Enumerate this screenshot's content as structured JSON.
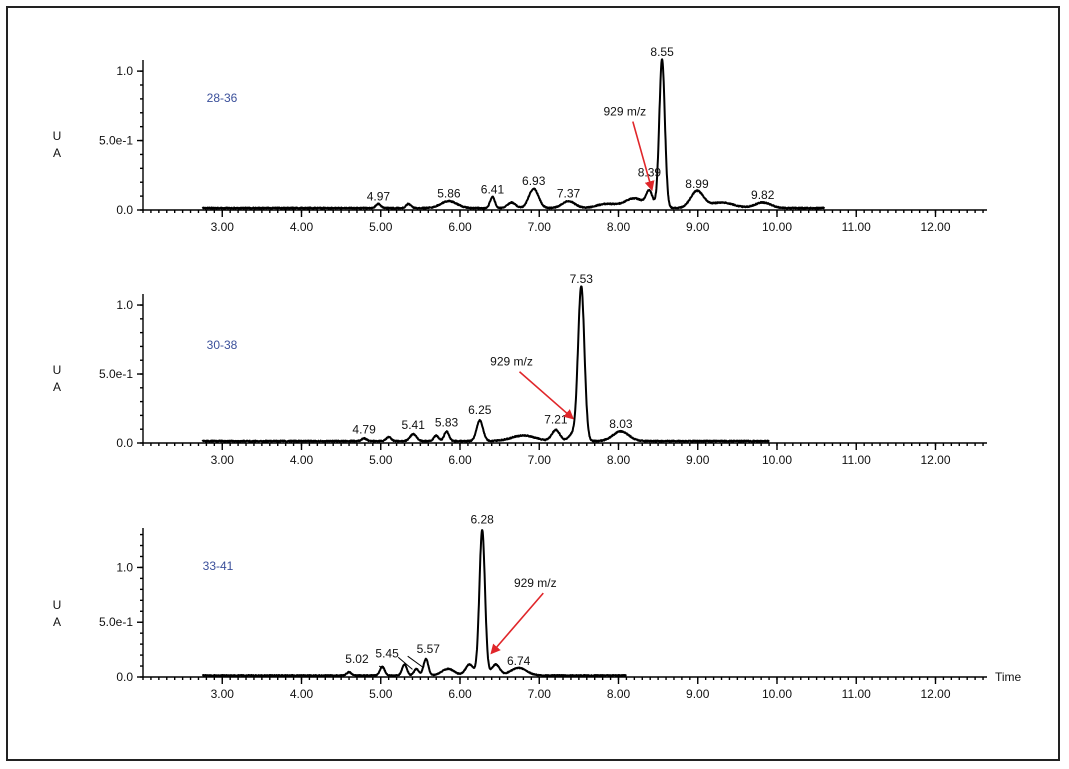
{
  "chart_data": [
    {
      "type": "line",
      "sample_label": "28-36",
      "ylabel": "U\nA",
      "y_ticks": [
        "0.0",
        "5.0e-1",
        "1.0"
      ],
      "x_ticks": [
        "3.00",
        "4.00",
        "5.00",
        "6.00",
        "7.00",
        "8.00",
        "9.00",
        "10.00",
        "11.00",
        "12.00"
      ],
      "xlim": [
        2.0,
        12.65
      ],
      "ylim": [
        0,
        1.08
      ],
      "trace_range": [
        2.75,
        10.6
      ],
      "peaks": [
        {
          "rt": 4.97,
          "h": 0.03,
          "w": 0.03
        },
        {
          "rt": 5.35,
          "h": 0.03,
          "w": 0.03
        },
        {
          "rt": 5.86,
          "h": 0.05,
          "w": 0.1
        },
        {
          "rt": 6.41,
          "h": 0.08,
          "w": 0.03
        },
        {
          "rt": 6.65,
          "h": 0.04,
          "w": 0.05
        },
        {
          "rt": 6.93,
          "h": 0.14,
          "w": 0.06
        },
        {
          "rt": 7.37,
          "h": 0.05,
          "w": 0.08
        },
        {
          "rt": 7.85,
          "h": 0.03,
          "w": 0.12
        },
        {
          "rt": 8.2,
          "h": 0.07,
          "w": 0.12
        },
        {
          "rt": 8.39,
          "h": 0.11,
          "w": 0.04
        },
        {
          "rt": 8.55,
          "h": 1.07,
          "w": 0.035
        },
        {
          "rt": 8.99,
          "h": 0.12,
          "w": 0.08
        },
        {
          "rt": 9.3,
          "h": 0.04,
          "w": 0.15
        },
        {
          "rt": 9.82,
          "h": 0.04,
          "w": 0.1
        }
      ],
      "peak_labels": [
        {
          "text": "4.97",
          "rt": 4.97,
          "y": 0.07
        },
        {
          "text": "5.86",
          "rt": 5.86,
          "y": 0.09
        },
        {
          "text": "6.41",
          "rt": 6.41,
          "y": 0.12
        },
        {
          "text": "6.93",
          "rt": 6.93,
          "y": 0.18
        },
        {
          "text": "7.37",
          "rt": 7.37,
          "y": 0.09
        },
        {
          "text": "8.39",
          "rt": 8.39,
          "y": 0.24
        },
        {
          "text": "8.55",
          "rt": 8.55,
          "y": 1.11
        },
        {
          "text": "8.99",
          "rt": 8.99,
          "y": 0.16
        },
        {
          "text": "9.82",
          "rt": 9.82,
          "y": 0.08
        }
      ],
      "annotation": {
        "text": "929 m/z",
        "text_rt": 8.08,
        "text_y": 0.68,
        "arrow_to_rt": 8.42,
        "arrow_to_y": 0.15
      }
    },
    {
      "type": "line",
      "sample_label": "30-38",
      "ylabel": "U\nA",
      "y_ticks": [
        "0.0",
        "5.0e-1",
        "1.0"
      ],
      "x_ticks": [
        "3.00",
        "4.00",
        "5.00",
        "6.00",
        "7.00",
        "8.00",
        "9.00",
        "10.00",
        "11.00",
        "12.00"
      ],
      "xlim": [
        2.0,
        12.65
      ],
      "ylim": [
        0,
        1.08
      ],
      "trace_range": [
        2.75,
        9.9
      ],
      "peaks": [
        {
          "rt": 4.79,
          "h": 0.02,
          "w": 0.03
        },
        {
          "rt": 5.1,
          "h": 0.03,
          "w": 0.03
        },
        {
          "rt": 5.41,
          "h": 0.05,
          "w": 0.04
        },
        {
          "rt": 5.7,
          "h": 0.04,
          "w": 0.03
        },
        {
          "rt": 5.83,
          "h": 0.07,
          "w": 0.03
        },
        {
          "rt": 6.25,
          "h": 0.15,
          "w": 0.04
        },
        {
          "rt": 6.8,
          "h": 0.04,
          "w": 0.15
        },
        {
          "rt": 7.21,
          "h": 0.08,
          "w": 0.05
        },
        {
          "rt": 7.42,
          "h": 0.05,
          "w": 0.05
        },
        {
          "rt": 7.53,
          "h": 1.12,
          "w": 0.04
        },
        {
          "rt": 8.03,
          "h": 0.07,
          "w": 0.1
        }
      ],
      "peak_labels": [
        {
          "text": "4.79",
          "rt": 4.79,
          "y": 0.07
        },
        {
          "text": "5.41",
          "rt": 5.41,
          "y": 0.1
        },
        {
          "text": "5.83",
          "rt": 5.83,
          "y": 0.12
        },
        {
          "text": "6.25",
          "rt": 6.25,
          "y": 0.21
        },
        {
          "text": "7.21",
          "rt": 7.21,
          "y": 0.14
        },
        {
          "text": "7.53",
          "rt": 7.53,
          "y": 1.16
        },
        {
          "text": "8.03",
          "rt": 8.03,
          "y": 0.11
        }
      ],
      "annotation": {
        "text": "929 m/z",
        "text_rt": 6.65,
        "text_y": 0.56,
        "arrow_to_rt": 7.42,
        "arrow_to_y": 0.18
      }
    },
    {
      "type": "line",
      "sample_label": "33-41",
      "ylabel": "U\nA",
      "y_ticks": [
        "0.0",
        "5.0e-1",
        "1.0"
      ],
      "x_ticks": [
        "3.00",
        "4.00",
        "5.00",
        "6.00",
        "7.00",
        "8.00",
        "9.00",
        "10.00",
        "11.00",
        "12.00"
      ],
      "xlabel": "Time",
      "xlim": [
        2.0,
        12.65
      ],
      "ylim": [
        0,
        1.36
      ],
      "trace_range": [
        2.75,
        8.1
      ],
      "peaks": [
        {
          "rt": 4.6,
          "h": 0.03,
          "w": 0.03
        },
        {
          "rt": 5.02,
          "h": 0.08,
          "w": 0.03
        },
        {
          "rt": 5.3,
          "h": 0.1,
          "w": 0.03
        },
        {
          "rt": 5.45,
          "h": 0.06,
          "w": 0.03
        },
        {
          "rt": 5.57,
          "h": 0.15,
          "w": 0.03
        },
        {
          "rt": 5.85,
          "h": 0.06,
          "w": 0.08
        },
        {
          "rt": 6.12,
          "h": 0.1,
          "w": 0.05
        },
        {
          "rt": 6.28,
          "h": 1.33,
          "w": 0.035
        },
        {
          "rt": 6.45,
          "h": 0.1,
          "w": 0.05
        },
        {
          "rt": 6.74,
          "h": 0.07,
          "w": 0.1
        }
      ],
      "peak_labels": [
        {
          "text": "5.02",
          "rt": 4.7,
          "y": 0.13
        },
        {
          "text": "5.45",
          "rt": 5.08,
          "y": 0.18
        },
        {
          "text": "5.57",
          "rt": 5.6,
          "y": 0.22
        },
        {
          "text": "6.28",
          "rt": 6.28,
          "y": 1.4
        },
        {
          "text": "6.74",
          "rt": 6.74,
          "y": 0.11
        }
      ],
      "label_leaders": [
        {
          "from_rt": 4.98,
          "from_y": 0.1,
          "to_rt": 5.05,
          "to_y": 0.07
        },
        {
          "from_rt": 5.22,
          "from_y": 0.18,
          "to_rt": 5.4,
          "to_y": 0.07
        },
        {
          "from_rt": 5.34,
          "from_y": 0.19,
          "to_rt": 5.53,
          "to_y": 0.09
        }
      ],
      "annotation": {
        "text": "929 m/z",
        "text_rt": 6.95,
        "text_y": 0.82,
        "arrow_to_rt": 6.4,
        "arrow_to_y": 0.22
      }
    }
  ]
}
